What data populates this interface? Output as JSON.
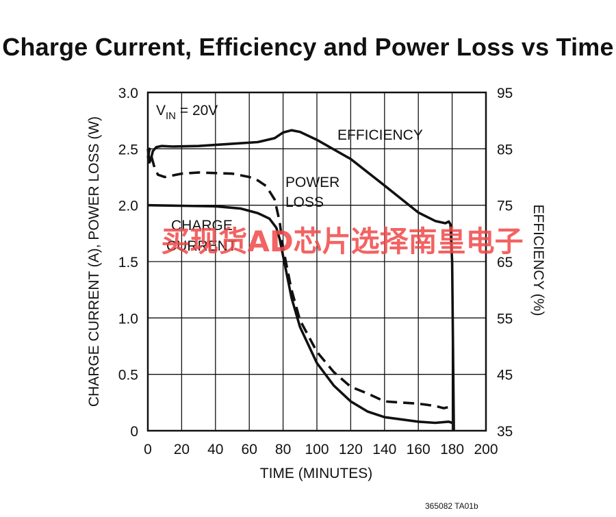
{
  "chart_data": {
    "type": "line",
    "title": "Charge Current, Efficiency and Power Loss vs Time",
    "xlabel": "TIME (MINUTES)",
    "ylabel_left": "CHARGE CURRENT (A), POWER LOSS (W)",
    "ylabel_right": "EFFICIENCY (%)",
    "xlim": [
      0,
      200
    ],
    "ylim_left": [
      0,
      3.0
    ],
    "ylim_right": [
      35,
      95
    ],
    "x_ticks": [
      "0",
      "20",
      "40",
      "60",
      "80",
      "100",
      "120",
      "140",
      "160",
      "180",
      "200"
    ],
    "y_ticks_left": [
      "0",
      "0.5",
      "1.0",
      "1.5",
      "2.0",
      "2.5",
      "3.0"
    ],
    "y_ticks_right": [
      "35",
      "45",
      "55",
      "65",
      "75",
      "85",
      "95"
    ],
    "grid": true,
    "condition": {
      "main": "V",
      "sub": "IN",
      "rest": " = 20V"
    },
    "series": [
      {
        "name": "EFFICIENCY",
        "axis": "right",
        "style": "solid",
        "x": [
          0,
          1,
          2,
          3,
          5,
          8,
          15,
          30,
          50,
          65,
          75,
          80,
          85,
          90,
          100,
          120,
          140,
          160,
          170,
          176,
          178,
          179,
          180,
          181
        ],
        "y": [
          85,
          82.6,
          83.4,
          84.6,
          85.3,
          85.5,
          85.4,
          85.5,
          85.9,
          86.2,
          86.9,
          87.9,
          88.3,
          88.0,
          86.6,
          83.2,
          78.5,
          73.7,
          72.2,
          71.8,
          72.1,
          71.6,
          65,
          35
        ]
      },
      {
        "name": "POWER LOSS",
        "axis": "left",
        "style": "dashed",
        "x": [
          0,
          1,
          2,
          4,
          6,
          10,
          20,
          30,
          50,
          60,
          65,
          70,
          75,
          78,
          80,
          85,
          90,
          100,
          110,
          120,
          130,
          140,
          160,
          170,
          175,
          178
        ],
        "y": [
          2.42,
          2.5,
          2.44,
          2.33,
          2.27,
          2.25,
          2.28,
          2.29,
          2.28,
          2.25,
          2.22,
          2.17,
          2.05,
          1.85,
          1.62,
          1.25,
          0.98,
          0.7,
          0.52,
          0.39,
          0.33,
          0.26,
          0.24,
          0.22,
          0.2,
          0.21
        ]
      },
      {
        "name": "CHARGE CURRENT",
        "axis": "left",
        "style": "solid",
        "x": [
          0,
          20,
          40,
          55,
          65,
          72,
          76,
          78,
          80,
          85,
          90,
          100,
          110,
          120,
          130,
          140,
          160,
          170,
          178,
          180
        ],
        "y": [
          2.0,
          1.995,
          1.99,
          1.97,
          1.93,
          1.88,
          1.8,
          1.7,
          1.55,
          1.18,
          0.92,
          0.6,
          0.4,
          0.26,
          0.17,
          0.12,
          0.08,
          0.07,
          0.08,
          0.07
        ]
      }
    ],
    "annotations": {
      "efficiency": "EFFICIENCY",
      "power_loss_1": "POWER",
      "power_loss_2": "LOSS",
      "charge_current_1": "CHARGE",
      "charge_current_2": "CURRENT"
    },
    "figure_code": "365082 TA01b"
  },
  "watermark": "买现货AD芯片选择南皇电子"
}
